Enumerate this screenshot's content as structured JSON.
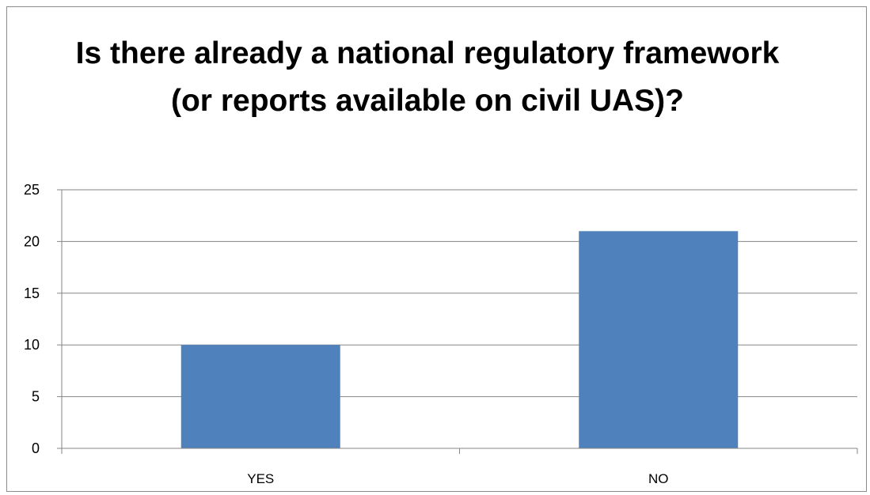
{
  "chart_data": {
    "type": "bar",
    "title": "Is there already a national regulatory framework (or reports available on civil UAS)?",
    "categories": [
      "YES",
      "NO"
    ],
    "values": [
      10,
      21
    ],
    "ylim": [
      0,
      25
    ],
    "yticks": [
      0,
      5,
      10,
      15,
      20,
      25
    ],
    "grid": true,
    "legend": "none",
    "bar_color": "#4f81bd",
    "grid_color": "#868686"
  }
}
